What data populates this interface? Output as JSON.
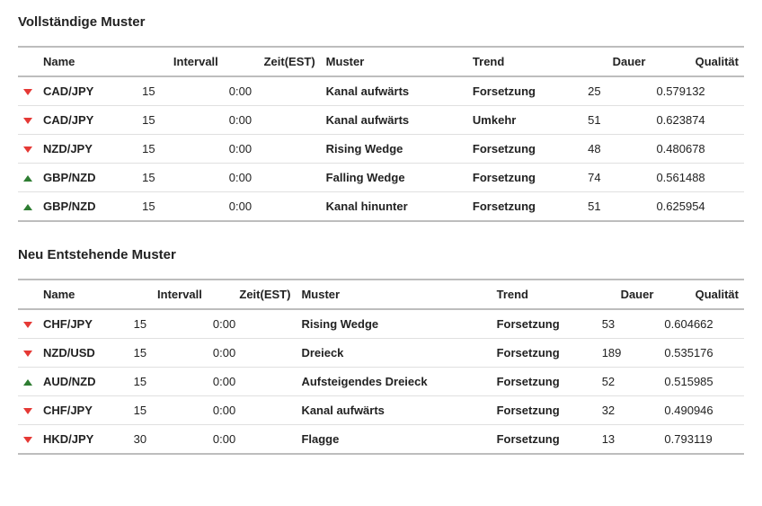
{
  "colors": {
    "arrow_up": "#2e7d32",
    "arrow_down": "#e53935",
    "border_outer": "#bdbdbd",
    "border_row": "#e0e0e0",
    "text": "#222222",
    "background": "#ffffff"
  },
  "sections": [
    {
      "title": "Vollständige Muster",
      "columns": [
        "Name",
        "Intervall",
        "Zeit(EST)",
        "Muster",
        "Trend",
        "Dauer",
        "Qualität"
      ],
      "rows": [
        {
          "dir": "down",
          "name": "CAD/JPY",
          "intervall": "15",
          "zeit": "0:00",
          "muster": "Kanal aufwärts",
          "trend": "Forsetzung",
          "dauer": "25",
          "qual": "0.579132"
        },
        {
          "dir": "down",
          "name": "CAD/JPY",
          "intervall": "15",
          "zeit": "0:00",
          "muster": "Kanal aufwärts",
          "trend": "Umkehr",
          "dauer": "51",
          "qual": "0.623874"
        },
        {
          "dir": "down",
          "name": "NZD/JPY",
          "intervall": "15",
          "zeit": "0:00",
          "muster": "Rising Wedge",
          "trend": "Forsetzung",
          "dauer": "48",
          "qual": "0.480678"
        },
        {
          "dir": "up",
          "name": "GBP/NZD",
          "intervall": "15",
          "zeit": "0:00",
          "muster": "Falling Wedge",
          "trend": "Forsetzung",
          "dauer": "74",
          "qual": "0.561488"
        },
        {
          "dir": "up",
          "name": "GBP/NZD",
          "intervall": "15",
          "zeit": "0:00",
          "muster": "Kanal hinunter",
          "trend": "Forsetzung",
          "dauer": "51",
          "qual": "0.625954"
        }
      ]
    },
    {
      "title": "Neu Entstehende Muster",
      "columns": [
        "Name",
        "Intervall",
        "Zeit(EST)",
        "Muster",
        "Trend",
        "Dauer",
        "Qualität"
      ],
      "rows": [
        {
          "dir": "down",
          "name": "CHF/JPY",
          "intervall": "15",
          "zeit": "0:00",
          "muster": "Rising Wedge",
          "trend": "Forsetzung",
          "dauer": "53",
          "qual": "0.604662"
        },
        {
          "dir": "down",
          "name": "NZD/USD",
          "intervall": "15",
          "zeit": "0:00",
          "muster": "Dreieck",
          "trend": "Forsetzung",
          "dauer": "189",
          "qual": "0.535176"
        },
        {
          "dir": "up",
          "name": "AUD/NZD",
          "intervall": "15",
          "zeit": "0:00",
          "muster": "Aufsteigendes Dreieck",
          "trend": "Forsetzung",
          "dauer": "52",
          "qual": "0.515985"
        },
        {
          "dir": "down",
          "name": "CHF/JPY",
          "intervall": "15",
          "zeit": "0:00",
          "muster": "Kanal aufwärts",
          "trend": "Forsetzung",
          "dauer": "32",
          "qual": "0.490946"
        },
        {
          "dir": "down",
          "name": "HKD/JPY",
          "intervall": "30",
          "zeit": "0:00",
          "muster": "Flagge",
          "trend": "Forsetzung",
          "dauer": "13",
          "qual": "0.793119"
        }
      ]
    }
  ]
}
